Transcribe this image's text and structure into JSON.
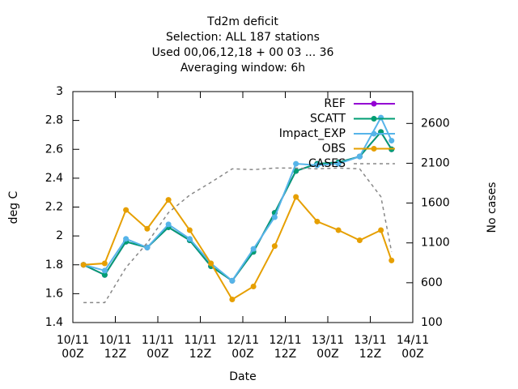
{
  "chart_data": {
    "type": "line",
    "title": [
      "Td2m deficit",
      "Selection: ALL    187 stations",
      "Used  00,06,12,18 + 00 03 ... 36",
      "Averaging window:  6h"
    ],
    "xlabel": "Date",
    "ylabel": "deg C",
    "y2label": "No cases",
    "x": [
      3,
      9,
      15,
      21,
      27,
      33,
      39,
      45,
      51,
      57,
      63,
      69,
      75,
      81,
      87,
      90
    ],
    "xlim": [
      0,
      96
    ],
    "xticks": [
      {
        "value": 0,
        "label": "10/11\n00Z"
      },
      {
        "value": 12,
        "label": "10/11\n12Z"
      },
      {
        "value": 24,
        "label": "11/11\n00Z"
      },
      {
        "value": 36,
        "label": "11/11\n12Z"
      },
      {
        "value": 48,
        "label": "12/11\n00Z"
      },
      {
        "value": 60,
        "label": "12/11\n12Z"
      },
      {
        "value": 72,
        "label": "13/11\n00Z"
      },
      {
        "value": 84,
        "label": "13/11\n12Z"
      },
      {
        "value": 96,
        "label": "14/11\n00Z"
      }
    ],
    "ylim": [
      1.4,
      3
    ],
    "yticks": [
      1.4,
      1.6,
      1.8,
      2,
      2.2,
      2.4,
      2.6,
      2.8,
      3
    ],
    "y2lim": [
      100,
      3000
    ],
    "y2ticks": [
      100,
      600,
      1100,
      1600,
      2100,
      2600
    ],
    "legend": "top-right",
    "series": [
      {
        "name": "REF",
        "color": "#9400d3",
        "values": [
          1.8,
          1.73,
          1.96,
          1.92,
          2.06,
          1.97,
          1.79,
          1.69,
          1.89,
          2.16,
          2.45,
          2.5,
          2.51,
          2.55,
          2.72,
          2.6
        ]
      },
      {
        "name": "SCATT",
        "color": "#009e73",
        "values": [
          1.8,
          1.73,
          1.96,
          1.92,
          2.06,
          1.97,
          1.79,
          1.69,
          1.89,
          2.16,
          2.45,
          2.5,
          2.51,
          2.55,
          2.72,
          2.6
        ]
      },
      {
        "name": "Impact_EXP",
        "color": "#56b4e9",
        "values": [
          1.8,
          1.76,
          1.98,
          1.92,
          2.08,
          1.98,
          1.81,
          1.69,
          1.91,
          2.13,
          2.5,
          2.49,
          2.5,
          2.55,
          2.82,
          2.66
        ]
      },
      {
        "name": "OBS",
        "color": "#e69f00",
        "values": [
          1.8,
          1.81,
          2.18,
          2.05,
          2.25,
          2.04,
          1.81,
          1.56,
          1.65,
          1.93,
          2.27,
          2.1,
          2.04,
          1.97,
          2.04,
          1.83
        ]
      },
      {
        "name": "CASES",
        "color": "#888888",
        "axis": "y2",
        "dashed": true,
        "values": [
          350,
          350,
          790,
          1100,
          1480,
          1700,
          1860,
          2030,
          2020,
          2040,
          2040,
          2030,
          2040,
          2030,
          1680,
          990
        ]
      }
    ]
  }
}
